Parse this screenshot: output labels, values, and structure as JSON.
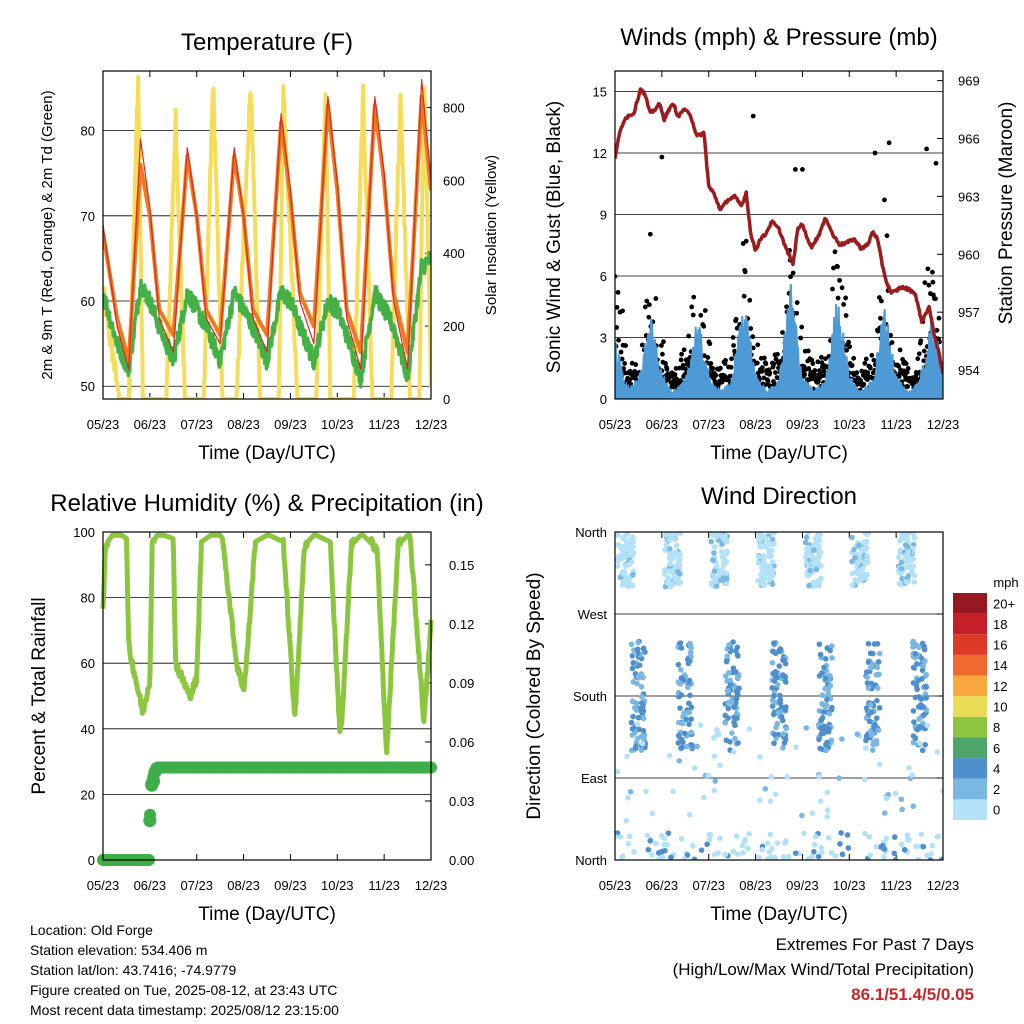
{
  "colors": {
    "red": "#d62b1f",
    "orange": "#f07a22",
    "green": "#44b046",
    "yellow": "#f5dd5a",
    "black": "#000000",
    "blue": "#4d9ad6",
    "maroon": "#9b1b1e",
    "rh": "#8cc63f",
    "precip": "#3fae49"
  },
  "x_ticks": [
    "05/23",
    "06/23",
    "07/23",
    "08/23",
    "09/23",
    "10/23",
    "11/23",
    "12/23"
  ],
  "chart_data": [
    {
      "id": "temperature",
      "type": "line",
      "title": "Temperature (F)",
      "xlabel": "Time (Day/UTC)",
      "ylabel": "2m & 9m T (Red, Orange) & 2m Td (Green)",
      "y2label": "Solar Insolation (Yellow)",
      "ylim": [
        48.5,
        87
      ],
      "y_ticks": [
        50,
        60,
        70,
        80
      ],
      "y2lim": [
        0,
        900
      ],
      "y2_ticks": [
        0,
        200,
        400,
        600,
        800
      ],
      "grid": true,
      "series": [
        {
          "name": "2m T",
          "color": "#d62b1f",
          "axis": "left",
          "x": [
            0.0,
            0.3,
            0.55,
            0.8,
            1.0,
            1.2,
            1.5,
            1.8,
            2.0,
            2.2,
            2.5,
            2.8,
            3.0,
            3.2,
            3.5,
            3.8,
            4.0,
            4.2,
            4.5,
            4.8,
            5.0,
            5.2,
            5.5,
            5.8,
            6.0,
            6.2,
            6.5,
            6.8,
            7.0
          ],
          "y": [
            69,
            57,
            52,
            79,
            71,
            58,
            54,
            78,
            70,
            58,
            55,
            78,
            70,
            58,
            54,
            82,
            73,
            60,
            55,
            84,
            74,
            58,
            52,
            84,
            75,
            60,
            52,
            86,
            74
          ]
        },
        {
          "name": "9m T",
          "color": "#f07a22",
          "axis": "left",
          "x": [
            0.0,
            0.3,
            0.55,
            0.8,
            1.0,
            1.2,
            1.5,
            1.8,
            2.0,
            2.2,
            2.5,
            2.8,
            3.0,
            3.2,
            3.5,
            3.8,
            4.0,
            4.2,
            4.5,
            4.8,
            5.0,
            5.2,
            5.5,
            5.8,
            6.0,
            6.2,
            6.5,
            6.8,
            7.0
          ],
          "y": [
            68,
            58,
            53,
            76,
            70,
            59,
            56,
            77,
            70,
            59,
            56,
            77,
            70,
            59,
            56,
            81,
            72,
            61,
            57,
            83,
            73,
            59,
            54,
            83,
            74,
            61,
            54,
            84,
            73
          ]
        },
        {
          "name": "2m Td",
          "color": "#44b046",
          "axis": "left",
          "x": [
            0.0,
            0.3,
            0.55,
            0.8,
            1.0,
            1.2,
            1.5,
            1.8,
            2.0,
            2.2,
            2.5,
            2.8,
            3.0,
            3.2,
            3.5,
            3.8,
            4.0,
            4.2,
            4.5,
            4.8,
            5.0,
            5.2,
            5.5,
            5.8,
            6.0,
            6.2,
            6.5,
            6.8,
            7.0
          ],
          "y": [
            61,
            55,
            52,
            62,
            60,
            57,
            53,
            61,
            59,
            57,
            53,
            61,
            59,
            57,
            53,
            61,
            60,
            57,
            53,
            60,
            59,
            56,
            51,
            61,
            59,
            57,
            51,
            64,
            65
          ]
        },
        {
          "name": "Solar Insolation",
          "color": "#f5dd5a",
          "axis": "right",
          "x": [
            0.0,
            0.35,
            0.55,
            0.75,
            0.85,
            1.15,
            1.35,
            1.55,
            1.75,
            1.85,
            2.15,
            2.35,
            2.55,
            2.75,
            2.85,
            3.15,
            3.35,
            3.55,
            3.75,
            3.85,
            4.15,
            4.35,
            4.55,
            4.75,
            4.85,
            5.15,
            5.35,
            5.55,
            5.75,
            5.85,
            6.15,
            6.35,
            6.55,
            6.75,
            6.85,
            7.0
          ],
          "y": [
            300,
            0,
            0,
            880,
            0,
            0,
            0,
            770,
            0,
            0,
            0,
            870,
            0,
            0,
            0,
            870,
            0,
            0,
            0,
            860,
            0,
            0,
            0,
            850,
            0,
            0,
            0,
            830,
            0,
            0,
            0,
            840,
            0,
            0,
            880,
            60
          ]
        }
      ]
    },
    {
      "id": "winds",
      "type": "scatter",
      "title": "Winds (mph) & Pressure (mb)",
      "xlabel": "Time (Day/UTC)",
      "ylabel": "Sonic Wind & Gust (Blue, Black)",
      "y2label": "Station Pressure (Maroon)",
      "ylim": [
        0,
        16
      ],
      "y_ticks": [
        0,
        3,
        6,
        9,
        12,
        15
      ],
      "y2lim": [
        952.5,
        969.5
      ],
      "y2_ticks": [
        954,
        957,
        960,
        963,
        966,
        969
      ],
      "grid": true,
      "gust_envelope": {
        "x": [
          0.0,
          0.25,
          0.5,
          0.75,
          1.0,
          1.25,
          1.5,
          1.75,
          2.0,
          2.25,
          2.5,
          2.75,
          3.0,
          3.25,
          3.5,
          3.75,
          4.0,
          4.25,
          4.5,
          4.75,
          5.0,
          5.25,
          5.5,
          5.75,
          6.0,
          6.25,
          6.5,
          6.75,
          7.0
        ],
        "y": [
          8,
          1.5,
          2,
          8.5,
          2.5,
          1,
          2,
          8,
          3,
          1,
          2,
          9,
          3,
          1,
          2,
          9.5,
          3,
          1,
          2,
          9,
          3,
          1,
          2,
          10,
          3,
          1,
          2,
          9.5,
          4
        ],
        "color": "#000000"
      },
      "wind_envelope": {
        "x": [
          0.0,
          0.25,
          0.5,
          0.75,
          1.0,
          1.25,
          1.5,
          1.75,
          2.0,
          2.25,
          2.5,
          2.75,
          3.0,
          3.25,
          3.5,
          3.75,
          4.0,
          4.25,
          4.5,
          4.75,
          5.0,
          5.25,
          5.5,
          5.75,
          6.0,
          6.25,
          6.5,
          6.75,
          7.0
        ],
        "y": [
          2.5,
          0.5,
          0.8,
          3.5,
          1,
          0.3,
          0.8,
          3.5,
          1,
          0.3,
          0.8,
          4.5,
          1,
          0.3,
          0.8,
          5,
          1,
          0.3,
          0.8,
          4.5,
          1,
          0.3,
          0.8,
          4,
          1,
          0.3,
          0.8,
          3.5,
          1.5
        ],
        "color": "#4d9ad6"
      },
      "gust_outliers": {
        "x": [
          1.0,
          2.95,
          3.85,
          4.0,
          5.55,
          5.85,
          6.65,
          6.85
        ],
        "y": [
          11.8,
          13.8,
          11.2,
          11.2,
          12.0,
          12.5,
          12.2,
          11.5
        ]
      },
      "pressure": {
        "name": "Station Pressure",
        "color": "#9b1b1e",
        "axis": "right",
        "x": [
          0.0,
          0.1,
          0.2,
          0.3,
          0.4,
          0.5,
          0.55,
          0.65,
          0.75,
          0.85,
          0.95,
          1.05,
          1.15,
          1.25,
          1.35,
          1.45,
          1.6,
          1.75,
          1.9,
          2.0,
          2.1,
          2.25,
          2.4,
          2.55,
          2.7,
          2.8,
          2.9,
          3.0,
          3.1,
          3.2,
          3.35,
          3.5,
          3.65,
          3.8,
          3.9,
          4.0,
          4.1,
          4.2,
          4.35,
          4.5,
          4.65,
          4.8,
          4.95,
          5.1,
          5.25,
          5.4,
          5.5,
          5.6,
          5.7,
          5.8,
          5.9,
          6.0,
          6.1,
          6.25,
          6.4,
          6.55,
          6.7,
          6.8,
          6.9,
          7.0
        ],
        "y": [
          965,
          966.3,
          967,
          967.2,
          967.3,
          968.2,
          968.6,
          968.2,
          967.3,
          967.5,
          967.8,
          967.0,
          967.5,
          967.8,
          967.1,
          967.5,
          967.3,
          966.1,
          966.3,
          963.5,
          963.2,
          962.3,
          962.8,
          963.0,
          962.5,
          963.2,
          961.0,
          960.2,
          960.8,
          961.0,
          961.7,
          961.3,
          960.3,
          959.5,
          961.3,
          961.6,
          960.8,
          960.4,
          961.0,
          961.9,
          961.0,
          960.5,
          960.6,
          960.8,
          960.3,
          960.5,
          961.2,
          960.8,
          959.5,
          958.5,
          958.0,
          958.1,
          958.3,
          958.2,
          958.0,
          956.5,
          957.3,
          956.0,
          955.0,
          953.8
        ]
      }
    },
    {
      "id": "humidity",
      "type": "line",
      "title": "Relative Humidity (%) & Precipitation (in)",
      "xlabel": "Time (Day/UTC)",
      "ylabel": "Percent & Total Rainfall",
      "ylim": [
        0,
        100
      ],
      "y_ticks": [
        0,
        20,
        40,
        60,
        80,
        100
      ],
      "y2lim": [
        0,
        0.1667
      ],
      "y2_ticks": [
        "0.00",
        "0.03",
        "0.06",
        "0.09",
        "0.12",
        "0.15"
      ],
      "grid": true,
      "series": [
        {
          "name": "Relative Humidity",
          "color": "#8cc63f",
          "axis": "left",
          "x": [
            0.0,
            0.05,
            0.2,
            0.4,
            0.5,
            0.55,
            0.85,
            1.0,
            1.05,
            1.15,
            1.3,
            1.5,
            1.55,
            1.85,
            2.0,
            2.1,
            2.3,
            2.5,
            2.55,
            2.85,
            3.0,
            3.05,
            3.25,
            3.5,
            3.55,
            3.85,
            4.05,
            4.1,
            4.3,
            4.5,
            4.55,
            4.85,
            5.05,
            5.1,
            5.3,
            5.5,
            5.55,
            5.85,
            6.05,
            6.1,
            6.3,
            6.5,
            6.55,
            6.85,
            7.0
          ],
          "y": [
            76,
            96,
            99,
            99,
            98,
            65,
            45,
            55,
            96,
            99,
            99,
            98,
            60,
            50,
            55,
            97,
            99,
            99,
            98,
            60,
            52,
            58,
            97,
            99,
            99,
            97,
            52,
            44,
            96,
            99,
            99,
            97,
            40,
            42,
            96,
            99,
            99,
            95,
            32,
            45,
            96,
            99,
            99,
            42,
            72
          ]
        },
        {
          "name": "Total Precipitation",
          "color": "#3fae49",
          "axis": "right",
          "x": [
            0.0,
            0.9,
            1.0,
            1.0,
            1.02,
            1.05,
            1.1,
            1.15,
            1.2,
            7.0
          ],
          "y": [
            0.0,
            0.0,
            0.0,
            0.02,
            0.038,
            0.04,
            0.045,
            0.047,
            0.047,
            0.047
          ]
        }
      ]
    },
    {
      "id": "wind_direction",
      "type": "scatter",
      "title": "Wind Direction",
      "xlabel": "Time (Day/UTC)",
      "ylabel": "Direction (Colored By Speed)",
      "y_ticks": [
        "North",
        "East",
        "South",
        "West",
        "North"
      ],
      "ylim": [
        0,
        360
      ],
      "colorbar_unit": "mph",
      "colorbar_labels": [
        "0",
        "2",
        "4",
        "6",
        "8",
        "10",
        "12",
        "14",
        "16",
        "18",
        "20+"
      ],
      "colorbar_colors": [
        "#b3e1f7",
        "#7ab8e3",
        "#4f8fcb",
        "#4ea56a",
        "#8cc63f",
        "#e8dd55",
        "#f9a93f",
        "#ef6a2c",
        "#dd3a27",
        "#c3202a",
        "#961820"
      ],
      "grid": true
    }
  ],
  "station_info": {
    "location": "Location: Old Forge",
    "elevation": "Station elevation: 534.406 m",
    "latlon": "Station lat/lon: 43.7416; -74.9779",
    "created": "Figure created on Tue, 2025-08-12, at 23:43 UTC",
    "recent": "Most recent data timestamp: 2025/08/12 23:15:00"
  },
  "extremes": {
    "heading": "Extremes For Past 7 Days",
    "subheading": "(High/Low/Max Wind/Total Precipitation)",
    "values": "86.1/51.4/5/0.05"
  }
}
